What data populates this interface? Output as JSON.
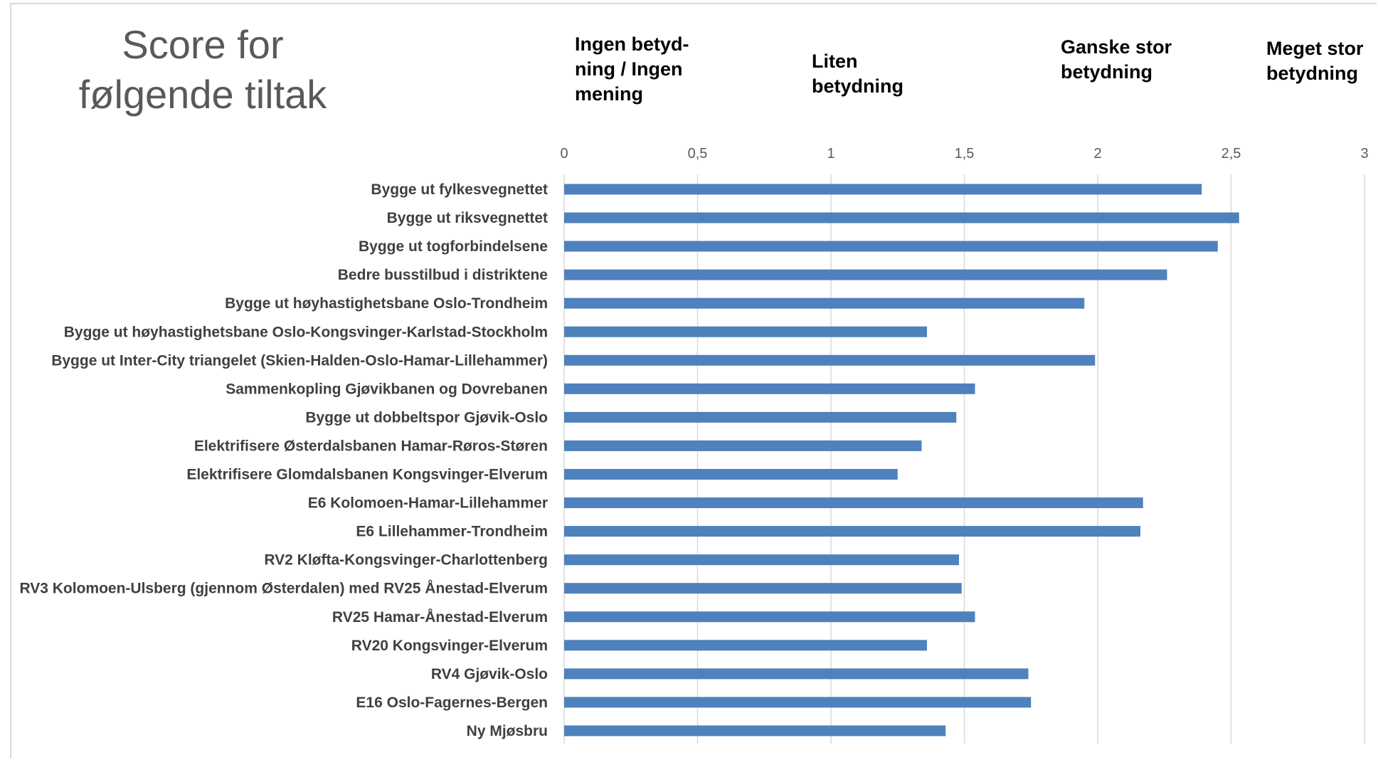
{
  "title": "Score for\nfølgende tiltak",
  "scale_labels": [
    {
      "text": "Ingen betyd-\nning / Ingen\nmening",
      "value": 0
    },
    {
      "text": "Liten\nbetydning",
      "value": 1
    },
    {
      "text": "Ganske stor\nbetydning",
      "value": 2
    },
    {
      "text": "Meget stor\nbetydning",
      "value": 3
    }
  ],
  "chart_data": {
    "type": "bar",
    "orientation": "horizontal",
    "title": "Score for følgende tiltak",
    "xlim": [
      0,
      3
    ],
    "x_ticks": [
      0,
      0.5,
      1,
      1.5,
      2,
      2.5,
      3
    ],
    "x_tick_labels": [
      "0",
      "0,5",
      "1",
      "1,5",
      "2",
      "2,5",
      "3"
    ],
    "grid": true,
    "bar_color": "#4F81BD",
    "categories": [
      "Bygge ut fylkesvegnettet",
      "Bygge ut riksvegnettet",
      "Bygge ut togforbindelsene",
      "Bedre busstilbud i distriktene",
      "Bygge ut høyhastighetsbane Oslo-Trondheim",
      "Bygge ut høyhastighetsbane Oslo-Kongsvinger-Karlstad-Stockholm",
      "Bygge ut Inter-City triangelet (Skien-Halden-Oslo-Hamar-Lillehammer)",
      "Sammenkopling Gjøvikbanen og Dovrebanen",
      "Bygge ut dobbeltspor Gjøvik-Oslo",
      "Elektrifisere Østerdalsbanen Hamar-Røros-Støren",
      "Elektrifisere Glomdalsbanen Kongsvinger-Elverum",
      "E6 Kolomoen-Hamar-Lillehammer",
      "E6 Lillehammer-Trondheim",
      "RV2 Kløfta-Kongsvinger-Charlottenberg",
      "RV3 Kolomoen-Ulsberg (gjennom Østerdalen) med RV25 Ånestad-Elverum",
      "RV25 Hamar-Ånestad-Elverum",
      "RV20 Kongsvinger-Elverum",
      "RV4 Gjøvik-Oslo",
      "E16 Oslo-Fagernes-Bergen",
      "Ny Mjøsbru"
    ],
    "values": [
      2.39,
      2.53,
      2.45,
      2.26,
      1.95,
      1.36,
      1.99,
      1.54,
      1.47,
      1.34,
      1.25,
      2.17,
      2.16,
      1.48,
      1.49,
      1.54,
      1.36,
      1.74,
      1.75,
      1.43
    ]
  }
}
